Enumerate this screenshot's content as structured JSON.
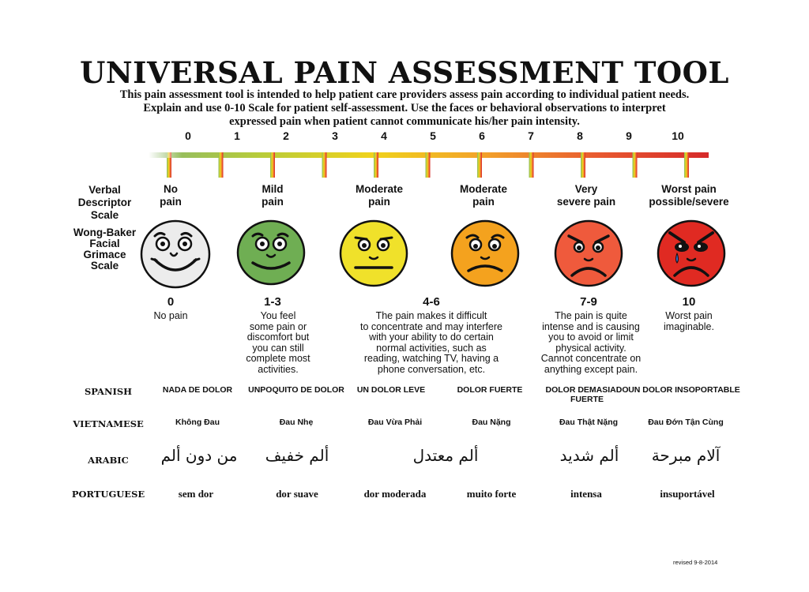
{
  "title": "UNIVERSAL PAIN ASSESSMENT TOOL",
  "intro_lines": [
    "This pain assessment tool is intended to help patient care providers assess pain according to individual patient needs.",
    "Explain and use 0-10 Scale for patient self-assessment. Use the faces or behavioral observations to interpret",
    "expressed pain when patient cannot communicate his/her pain intensity."
  ],
  "scale_numbers": [
    "0",
    "1",
    "2",
    "3",
    "4",
    "5",
    "6",
    "7",
    "8",
    "9",
    "10"
  ],
  "scale_colors": [
    "#8ab86a",
    "#b8cc3a",
    "#f0d21c",
    "#f2a12a",
    "#e85a30",
    "#d62a2a"
  ],
  "row_headers": {
    "verbal": [
      "Verbal",
      "Descriptor",
      "Scale"
    ],
    "wong_baker": [
      "Wong-Baker",
      "Facial",
      "Grimace",
      "Scale"
    ]
  },
  "columns": [
    {
      "verbal": [
        "No",
        "pain"
      ],
      "face_color": "#ececec",
      "face_icon": "smiling-face-icon",
      "score": "0",
      "description": [
        "No pain"
      ],
      "spanish": [
        "NADA DE DOLOR"
      ],
      "vietnamese": "Không Đau",
      "arabic": "من دون ألم",
      "portuguese": "sem dor"
    },
    {
      "verbal": [
        "Mild",
        "pain"
      ],
      "face_color": "#6fae53",
      "face_icon": "slight-smile-face-icon",
      "score": "1-3",
      "description": [
        "You feel",
        "some pain or",
        "discomfort but",
        "you can still",
        "complete most",
        "activities."
      ],
      "spanish": [
        "UNPOQUITO DE DOLOR"
      ],
      "vietnamese": "Đau Nhẹ",
      "arabic": "ألم خفيف",
      "portuguese": "dor suave"
    },
    {
      "verbal": [
        "Moderate",
        "pain"
      ],
      "face_color": "#f0e12a",
      "face_icon": "neutral-face-icon",
      "score": "",
      "description": [],
      "spanish": [
        "UN DOLOR LEVE"
      ],
      "vietnamese": "Đau Vừa Phải",
      "arabic": "",
      "portuguese": "dor moderada"
    },
    {
      "verbal": [
        "Moderate",
        "pain"
      ],
      "face_color": "#f4a21e",
      "face_icon": "frowning-face-icon",
      "score": "",
      "description": [],
      "spanish": [
        "DOLOR FUERTE"
      ],
      "vietnamese": "Đau Nặng",
      "arabic": "",
      "portuguese": "muito forte"
    },
    {
      "verbal": [
        "Very",
        "severe pain"
      ],
      "face_color": "#ef5a3c",
      "face_icon": "distressed-face-icon",
      "score": "7-9",
      "description": [
        "The pain is quite",
        "intense and is causing",
        "you to avoid or limit",
        "physical activity.",
        "Cannot concentrate on",
        "anything except pain."
      ],
      "spanish": [
        "DOLOR DEMASIADO",
        "FUERTE"
      ],
      "vietnamese": "Đau Thật Nặng",
      "arabic": "ألم شديد",
      "portuguese": "intensa"
    },
    {
      "verbal": [
        "Worst pain",
        "possible/severe"
      ],
      "face_color": "#e02a22",
      "face_icon": "crying-face-icon",
      "score": "10",
      "description": [
        "Worst pain",
        "imaginable."
      ],
      "spanish": [
        "UN DOLOR INSOPORTABLE"
      ],
      "vietnamese": "Đau Đớn Tận Cùng",
      "arabic": "آلام مبرحة",
      "portuguese": "insuportável"
    }
  ],
  "moderate_shared": {
    "score": "4-6",
    "description": [
      "The pain makes it difficult",
      "to concentrate and may interfere",
      "with your ability to do certain",
      "normal activities, such as",
      "reading, watching TV, having a",
      "phone conversation, etc."
    ],
    "arabic": "ألم معتدل"
  },
  "languages": {
    "spanish": "SPANISH",
    "vietnamese": "VIETNAMESE",
    "arabic": "ARABIC",
    "portuguese": "PORTUGUESE"
  },
  "revised": "revised 9-8-2014"
}
